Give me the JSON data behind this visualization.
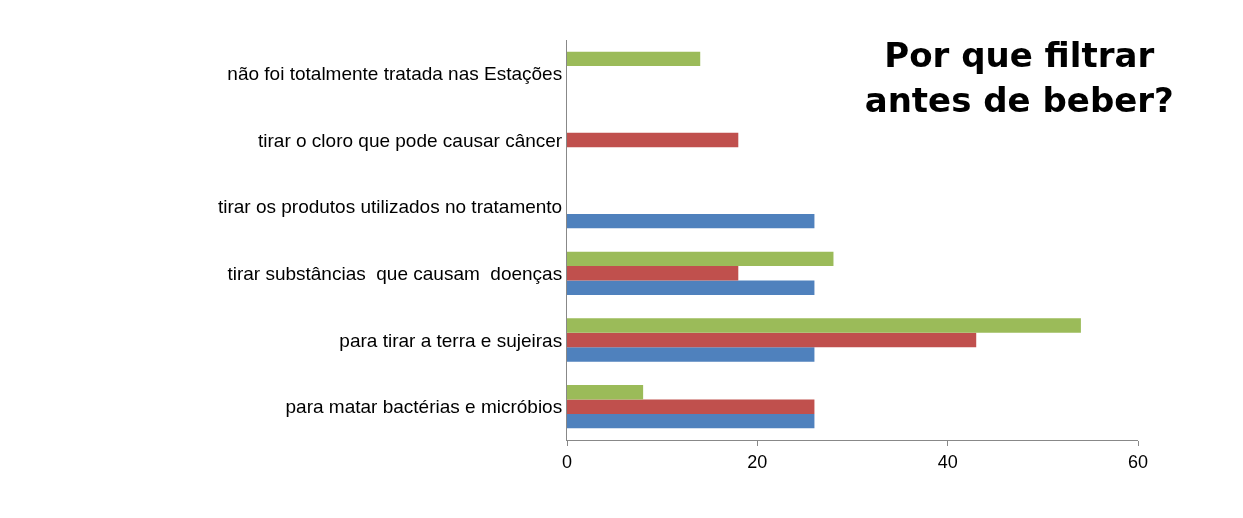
{
  "chart_data": {
    "type": "bar",
    "orientation": "horizontal",
    "title": "Por que filtrar\nantes de beber?",
    "categories": [
      "não foi totalmente tratada nas Estações",
      "tirar o cloro que pode causar câncer",
      "tirar os produtos utilizados no tratamento",
      "tirar substâncias  que causam  doenças",
      "para tirar a terra e sujeiras",
      "para matar bactérias e micróbios"
    ],
    "series": [
      {
        "color": "#4f81bd",
        "values": [
          0,
          0,
          26,
          26,
          26,
          26
        ]
      },
      {
        "color": "#c0504d",
        "values": [
          0,
          18,
          0,
          18,
          43,
          26
        ]
      },
      {
        "color": "#9bbb59",
        "values": [
          14,
          0,
          0,
          28,
          54,
          8
        ]
      }
    ],
    "xlim": [
      0,
      60
    ],
    "xticks": [
      0,
      20,
      40,
      60
    ],
    "grid": false
  }
}
